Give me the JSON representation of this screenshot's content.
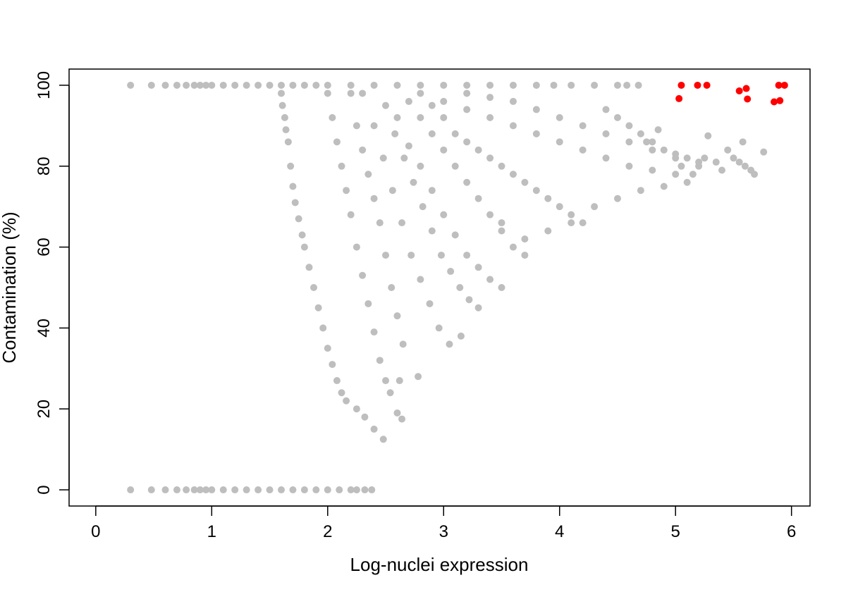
{
  "chart_data": {
    "type": "scatter",
    "title": "",
    "xlabel": "Log-nuclei expression",
    "ylabel": "Contamination (%)",
    "xlim": [
      -0.23,
      6.16
    ],
    "ylim": [
      -4,
      104
    ],
    "x_ticks": [
      0,
      1,
      2,
      3,
      4,
      5,
      6
    ],
    "y_ticks": [
      0,
      20,
      40,
      60,
      80,
      100
    ],
    "grid": false,
    "legend": "none",
    "colors": {
      "background": "#bebebe",
      "highlight": "#ff0000",
      "axis": "#000000"
    },
    "series": [
      {
        "role": "background",
        "color": "#bebebe",
        "points": [
          [
            0.3,
            100
          ],
          [
            0.48,
            100
          ],
          [
            0.6,
            100
          ],
          [
            0.7,
            100
          ],
          [
            0.78,
            100
          ],
          [
            0.85,
            100
          ],
          [
            0.9,
            100
          ],
          [
            0.95,
            100
          ],
          [
            1.0,
            100
          ],
          [
            1.1,
            100
          ],
          [
            1.2,
            100
          ],
          [
            1.3,
            100
          ],
          [
            1.4,
            100
          ],
          [
            1.5,
            100
          ],
          [
            1.6,
            100
          ],
          [
            1.7,
            100
          ],
          [
            1.8,
            100
          ],
          [
            1.9,
            100
          ],
          [
            2.0,
            100
          ],
          [
            2.2,
            100
          ],
          [
            2.4,
            100
          ],
          [
            2.6,
            100
          ],
          [
            2.8,
            100
          ],
          [
            3.0,
            100
          ],
          [
            3.2,
            100
          ],
          [
            3.4,
            100
          ],
          [
            3.6,
            100
          ],
          [
            3.8,
            100
          ],
          [
            3.95,
            100
          ],
          [
            4.1,
            100
          ],
          [
            4.3,
            100
          ],
          [
            4.5,
            100
          ],
          [
            4.58,
            100
          ],
          [
            4.68,
            100
          ],
          [
            0.3,
            0
          ],
          [
            0.48,
            0
          ],
          [
            0.6,
            0
          ],
          [
            0.7,
            0
          ],
          [
            0.78,
            0
          ],
          [
            0.85,
            0
          ],
          [
            0.9,
            0
          ],
          [
            0.95,
            0
          ],
          [
            1.0,
            0
          ],
          [
            1.1,
            0
          ],
          [
            1.2,
            0
          ],
          [
            1.3,
            0
          ],
          [
            1.4,
            0
          ],
          [
            1.5,
            0
          ],
          [
            1.6,
            0
          ],
          [
            1.7,
            0
          ],
          [
            1.8,
            0
          ],
          [
            1.9,
            0
          ],
          [
            2.0,
            0
          ],
          [
            2.1,
            0
          ],
          [
            2.2,
            0
          ],
          [
            2.25,
            0
          ],
          [
            2.32,
            0
          ],
          [
            2.38,
            0
          ],
          [
            1.6,
            98
          ],
          [
            1.61,
            95
          ],
          [
            1.63,
            92
          ],
          [
            1.64,
            89
          ],
          [
            1.66,
            86
          ],
          [
            1.68,
            80
          ],
          [
            1.7,
            75
          ],
          [
            1.72,
            71
          ],
          [
            1.75,
            67
          ],
          [
            1.78,
            63
          ],
          [
            1.8,
            60
          ],
          [
            1.84,
            55
          ],
          [
            1.88,
            50
          ],
          [
            1.92,
            45
          ],
          [
            1.96,
            40
          ],
          [
            2.0,
            35
          ],
          [
            2.04,
            31
          ],
          [
            2.08,
            27
          ],
          [
            2.12,
            24
          ],
          [
            2.16,
            22
          ],
          [
            2.25,
            20
          ],
          [
            2.32,
            18
          ],
          [
            2.4,
            15
          ],
          [
            2.48,
            12.5
          ],
          [
            2.0,
            98
          ],
          [
            2.04,
            92
          ],
          [
            2.08,
            86
          ],
          [
            2.12,
            80
          ],
          [
            2.16,
            74
          ],
          [
            2.2,
            68
          ],
          [
            2.25,
            60
          ],
          [
            2.3,
            53
          ],
          [
            2.35,
            46
          ],
          [
            2.4,
            39
          ],
          [
            2.45,
            32
          ],
          [
            2.5,
            27
          ],
          [
            2.54,
            24
          ],
          [
            2.2,
            98
          ],
          [
            2.25,
            90
          ],
          [
            2.3,
            84
          ],
          [
            2.35,
            78
          ],
          [
            2.4,
            72
          ],
          [
            2.45,
            66
          ],
          [
            2.5,
            58
          ],
          [
            2.55,
            50
          ],
          [
            2.6,
            43
          ],
          [
            2.65,
            36
          ],
          [
            2.62,
            27
          ],
          [
            2.6,
            19
          ],
          [
            2.64,
            17.5
          ],
          [
            2.78,
            28
          ],
          [
            2.3,
            98
          ],
          [
            2.4,
            90
          ],
          [
            2.48,
            82
          ],
          [
            2.56,
            74
          ],
          [
            2.64,
            66
          ],
          [
            2.72,
            58
          ],
          [
            2.8,
            52
          ],
          [
            2.88,
            46
          ],
          [
            2.96,
            40
          ],
          [
            3.05,
            36
          ],
          [
            3.15,
            38
          ],
          [
            2.5,
            95
          ],
          [
            2.58,
            88
          ],
          [
            2.66,
            82
          ],
          [
            2.74,
            76
          ],
          [
            2.82,
            70
          ],
          [
            2.9,
            64
          ],
          [
            2.98,
            58
          ],
          [
            3.06,
            54
          ],
          [
            3.14,
            50
          ],
          [
            3.22,
            47
          ],
          [
            3.3,
            45
          ],
          [
            2.6,
            92
          ],
          [
            2.7,
            85
          ],
          [
            2.8,
            80
          ],
          [
            2.9,
            74
          ],
          [
            3.0,
            68
          ],
          [
            3.1,
            63
          ],
          [
            3.2,
            58
          ],
          [
            3.3,
            55
          ],
          [
            3.4,
            52
          ],
          [
            3.5,
            50
          ],
          [
            2.7,
            96
          ],
          [
            2.8,
            92
          ],
          [
            2.9,
            88
          ],
          [
            3.0,
            84
          ],
          [
            3.1,
            80
          ],
          [
            3.2,
            76
          ],
          [
            3.3,
            72
          ],
          [
            3.4,
            68
          ],
          [
            3.5,
            64
          ],
          [
            3.6,
            60
          ],
          [
            3.7,
            58
          ],
          [
            2.8,
            98
          ],
          [
            2.9,
            95
          ],
          [
            3.0,
            92
          ],
          [
            3.1,
            88
          ],
          [
            3.2,
            86
          ],
          [
            3.3,
            84
          ],
          [
            3.4,
            82
          ],
          [
            3.5,
            80
          ],
          [
            3.6,
            78
          ],
          [
            3.7,
            76
          ],
          [
            3.8,
            74
          ],
          [
            3.9,
            72
          ],
          [
            4.0,
            70
          ],
          [
            4.1,
            68
          ],
          [
            4.2,
            66
          ],
          [
            3.0,
            96
          ],
          [
            3.2,
            94
          ],
          [
            3.4,
            92
          ],
          [
            3.6,
            90
          ],
          [
            3.8,
            88
          ],
          [
            4.0,
            86
          ],
          [
            4.2,
            84
          ],
          [
            4.4,
            82
          ],
          [
            4.6,
            80
          ],
          [
            4.8,
            79
          ],
          [
            5.0,
            78
          ],
          [
            3.2,
            98
          ],
          [
            3.4,
            97
          ],
          [
            3.6,
            96
          ],
          [
            3.8,
            94
          ],
          [
            4.0,
            92
          ],
          [
            4.2,
            90
          ],
          [
            4.4,
            88
          ],
          [
            4.6,
            86
          ],
          [
            4.8,
            84
          ],
          [
            5.0,
            82
          ],
          [
            5.2,
            81
          ],
          [
            3.5,
            66
          ],
          [
            3.7,
            62
          ],
          [
            3.9,
            64
          ],
          [
            4.1,
            66
          ],
          [
            4.3,
            70
          ],
          [
            4.5,
            72
          ],
          [
            4.7,
            74
          ],
          [
            4.9,
            75
          ],
          [
            5.1,
            76
          ],
          [
            4.4,
            94
          ],
          [
            4.5,
            92
          ],
          [
            4.6,
            90
          ],
          [
            4.7,
            88
          ],
          [
            4.75,
            86
          ],
          [
            4.8,
            86
          ],
          [
            4.85,
            89
          ],
          [
            4.9,
            84
          ],
          [
            5.0,
            83
          ],
          [
            5.05,
            80
          ],
          [
            5.1,
            82
          ],
          [
            5.15,
            78
          ],
          [
            5.2,
            80
          ],
          [
            5.25,
            82
          ],
          [
            5.28,
            87.5
          ],
          [
            5.35,
            81
          ],
          [
            5.4,
            79
          ],
          [
            5.45,
            84
          ],
          [
            5.5,
            82
          ],
          [
            5.55,
            81
          ],
          [
            5.58,
            86
          ],
          [
            5.6,
            80
          ],
          [
            5.65,
            79
          ],
          [
            5.68,
            78
          ],
          [
            5.76,
            83.5
          ]
        ]
      },
      {
        "role": "highlight",
        "color": "#ff0000",
        "points": [
          [
            5.03,
            96.7
          ],
          [
            5.05,
            100
          ],
          [
            5.19,
            100
          ],
          [
            5.27,
            100
          ],
          [
            5.55,
            98.6
          ],
          [
            5.61,
            99.2
          ],
          [
            5.62,
            96.6
          ],
          [
            5.85,
            95.9
          ],
          [
            5.89,
            100
          ],
          [
            5.9,
            96.2
          ],
          [
            5.94,
            100
          ]
        ]
      }
    ]
  }
}
